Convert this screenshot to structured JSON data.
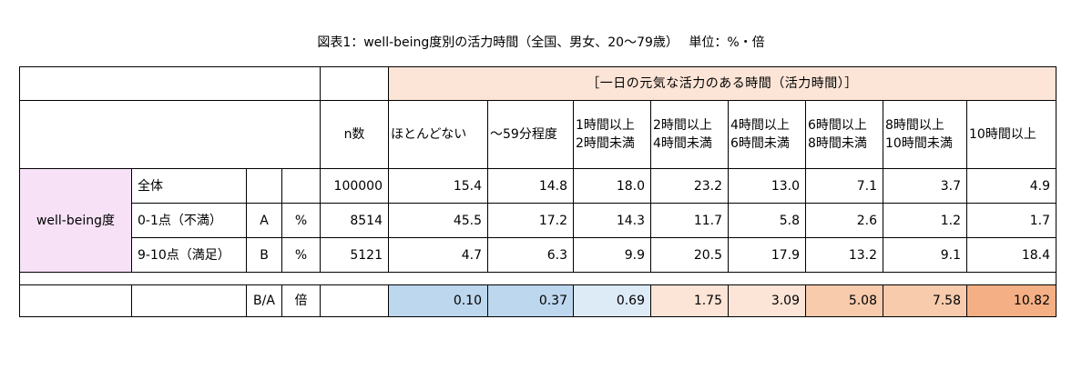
{
  "title": "図表1：well-being度別の活力時間（全国、男女、20～79歳）　 単位：%・倍",
  "banner": "［一日の元気な活力のある時間（活力時間）］",
  "n_header": "n数",
  "columns": [
    {
      "line1": "ほとんどない",
      "line2": ""
    },
    {
      "line1": "～59分程度",
      "line2": ""
    },
    {
      "line1": "1時間以上",
      "line2": "2時間未満"
    },
    {
      "line1": "2時間以上",
      "line2": "4時間未満"
    },
    {
      "line1": "4時間以上",
      "line2": "6時間未満"
    },
    {
      "line1": "6時間以上",
      "line2": "8時間未満"
    },
    {
      "line1": "8時間以上",
      "line2": "10時間未満"
    },
    {
      "line1": "10時間以上",
      "line2": ""
    }
  ],
  "group_label": "well-being度",
  "rows": [
    {
      "label": "全体",
      "code": "",
      "unit": "",
      "n": "100000",
      "values": [
        "15.4",
        "14.8",
        "18.0",
        "23.2",
        "13.0",
        "7.1",
        "3.7",
        "4.9"
      ]
    },
    {
      "label": "0-1点（不満）",
      "code": "A",
      "unit": "%",
      "n": "8514",
      "values": [
        "45.5",
        "17.2",
        "14.3",
        "11.7",
        "5.8",
        "2.6",
        "1.2",
        "1.7"
      ]
    },
    {
      "label": "9-10点（満足）",
      "code": "B",
      "unit": "%",
      "n": "5121",
      "values": [
        "4.7",
        "6.3",
        "9.9",
        "20.5",
        "17.9",
        "13.2",
        "9.1",
        "18.4"
      ]
    }
  ],
  "ratio": {
    "code": "B/A",
    "unit": "倍",
    "values": [
      "0.10",
      "0.37",
      "0.69",
      "1.75",
      "3.09",
      "5.08",
      "7.58",
      "10.82"
    ],
    "colors": [
      "#bdd7ee",
      "#bdd7ee",
      "#ddebf7",
      "#fce4d6",
      "#fce4d6",
      "#f8cbad",
      "#f8cbad",
      "#f4b084"
    ]
  },
  "colors": {
    "banner_bg": "#fce4d6",
    "group_bg": "#f6e1f7"
  }
}
